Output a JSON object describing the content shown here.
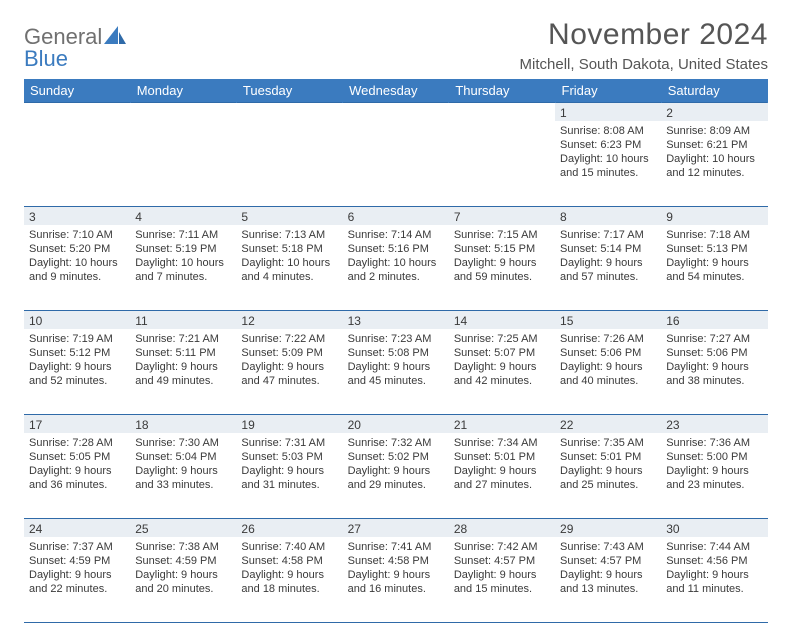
{
  "brand": {
    "word1": "General",
    "word2": "Blue"
  },
  "title": "November 2024",
  "location": "Mitchell, South Dakota, United States",
  "colors": {
    "header_bg": "#3b7bbf",
    "header_text": "#ffffff",
    "rule": "#2f6aa8",
    "daynum_bg": "#e9eef3",
    "body_text": "#3a3a3a",
    "title_text": "#555555",
    "logo_gray": "#707070",
    "logo_blue": "#3b7bbf",
    "page_bg": "#ffffff"
  },
  "typography": {
    "title_fontsize": 30,
    "location_fontsize": 15,
    "dayhead_fontsize": 13,
    "daynum_fontsize": 12,
    "cell_fontsize": 11
  },
  "day_headers": [
    "Sunday",
    "Monday",
    "Tuesday",
    "Wednesday",
    "Thursday",
    "Friday",
    "Saturday"
  ],
  "weeks": [
    [
      null,
      null,
      null,
      null,
      null,
      {
        "n": "1",
        "sr": "Sunrise: 8:08 AM",
        "ss": "Sunset: 6:23 PM",
        "dl1": "Daylight: 10 hours",
        "dl2": "and 15 minutes."
      },
      {
        "n": "2",
        "sr": "Sunrise: 8:09 AM",
        "ss": "Sunset: 6:21 PM",
        "dl1": "Daylight: 10 hours",
        "dl2": "and 12 minutes."
      }
    ],
    [
      {
        "n": "3",
        "sr": "Sunrise: 7:10 AM",
        "ss": "Sunset: 5:20 PM",
        "dl1": "Daylight: 10 hours",
        "dl2": "and 9 minutes."
      },
      {
        "n": "4",
        "sr": "Sunrise: 7:11 AM",
        "ss": "Sunset: 5:19 PM",
        "dl1": "Daylight: 10 hours",
        "dl2": "and 7 minutes."
      },
      {
        "n": "5",
        "sr": "Sunrise: 7:13 AM",
        "ss": "Sunset: 5:18 PM",
        "dl1": "Daylight: 10 hours",
        "dl2": "and 4 minutes."
      },
      {
        "n": "6",
        "sr": "Sunrise: 7:14 AM",
        "ss": "Sunset: 5:16 PM",
        "dl1": "Daylight: 10 hours",
        "dl2": "and 2 minutes."
      },
      {
        "n": "7",
        "sr": "Sunrise: 7:15 AM",
        "ss": "Sunset: 5:15 PM",
        "dl1": "Daylight: 9 hours",
        "dl2": "and 59 minutes."
      },
      {
        "n": "8",
        "sr": "Sunrise: 7:17 AM",
        "ss": "Sunset: 5:14 PM",
        "dl1": "Daylight: 9 hours",
        "dl2": "and 57 minutes."
      },
      {
        "n": "9",
        "sr": "Sunrise: 7:18 AM",
        "ss": "Sunset: 5:13 PM",
        "dl1": "Daylight: 9 hours",
        "dl2": "and 54 minutes."
      }
    ],
    [
      {
        "n": "10",
        "sr": "Sunrise: 7:19 AM",
        "ss": "Sunset: 5:12 PM",
        "dl1": "Daylight: 9 hours",
        "dl2": "and 52 minutes."
      },
      {
        "n": "11",
        "sr": "Sunrise: 7:21 AM",
        "ss": "Sunset: 5:11 PM",
        "dl1": "Daylight: 9 hours",
        "dl2": "and 49 minutes."
      },
      {
        "n": "12",
        "sr": "Sunrise: 7:22 AM",
        "ss": "Sunset: 5:09 PM",
        "dl1": "Daylight: 9 hours",
        "dl2": "and 47 minutes."
      },
      {
        "n": "13",
        "sr": "Sunrise: 7:23 AM",
        "ss": "Sunset: 5:08 PM",
        "dl1": "Daylight: 9 hours",
        "dl2": "and 45 minutes."
      },
      {
        "n": "14",
        "sr": "Sunrise: 7:25 AM",
        "ss": "Sunset: 5:07 PM",
        "dl1": "Daylight: 9 hours",
        "dl2": "and 42 minutes."
      },
      {
        "n": "15",
        "sr": "Sunrise: 7:26 AM",
        "ss": "Sunset: 5:06 PM",
        "dl1": "Daylight: 9 hours",
        "dl2": "and 40 minutes."
      },
      {
        "n": "16",
        "sr": "Sunrise: 7:27 AM",
        "ss": "Sunset: 5:06 PM",
        "dl1": "Daylight: 9 hours",
        "dl2": "and 38 minutes."
      }
    ],
    [
      {
        "n": "17",
        "sr": "Sunrise: 7:28 AM",
        "ss": "Sunset: 5:05 PM",
        "dl1": "Daylight: 9 hours",
        "dl2": "and 36 minutes."
      },
      {
        "n": "18",
        "sr": "Sunrise: 7:30 AM",
        "ss": "Sunset: 5:04 PM",
        "dl1": "Daylight: 9 hours",
        "dl2": "and 33 minutes."
      },
      {
        "n": "19",
        "sr": "Sunrise: 7:31 AM",
        "ss": "Sunset: 5:03 PM",
        "dl1": "Daylight: 9 hours",
        "dl2": "and 31 minutes."
      },
      {
        "n": "20",
        "sr": "Sunrise: 7:32 AM",
        "ss": "Sunset: 5:02 PM",
        "dl1": "Daylight: 9 hours",
        "dl2": "and 29 minutes."
      },
      {
        "n": "21",
        "sr": "Sunrise: 7:34 AM",
        "ss": "Sunset: 5:01 PM",
        "dl1": "Daylight: 9 hours",
        "dl2": "and 27 minutes."
      },
      {
        "n": "22",
        "sr": "Sunrise: 7:35 AM",
        "ss": "Sunset: 5:01 PM",
        "dl1": "Daylight: 9 hours",
        "dl2": "and 25 minutes."
      },
      {
        "n": "23",
        "sr": "Sunrise: 7:36 AM",
        "ss": "Sunset: 5:00 PM",
        "dl1": "Daylight: 9 hours",
        "dl2": "and 23 minutes."
      }
    ],
    [
      {
        "n": "24",
        "sr": "Sunrise: 7:37 AM",
        "ss": "Sunset: 4:59 PM",
        "dl1": "Daylight: 9 hours",
        "dl2": "and 22 minutes."
      },
      {
        "n": "25",
        "sr": "Sunrise: 7:38 AM",
        "ss": "Sunset: 4:59 PM",
        "dl1": "Daylight: 9 hours",
        "dl2": "and 20 minutes."
      },
      {
        "n": "26",
        "sr": "Sunrise: 7:40 AM",
        "ss": "Sunset: 4:58 PM",
        "dl1": "Daylight: 9 hours",
        "dl2": "and 18 minutes."
      },
      {
        "n": "27",
        "sr": "Sunrise: 7:41 AM",
        "ss": "Sunset: 4:58 PM",
        "dl1": "Daylight: 9 hours",
        "dl2": "and 16 minutes."
      },
      {
        "n": "28",
        "sr": "Sunrise: 7:42 AM",
        "ss": "Sunset: 4:57 PM",
        "dl1": "Daylight: 9 hours",
        "dl2": "and 15 minutes."
      },
      {
        "n": "29",
        "sr": "Sunrise: 7:43 AM",
        "ss": "Sunset: 4:57 PM",
        "dl1": "Daylight: 9 hours",
        "dl2": "and 13 minutes."
      },
      {
        "n": "30",
        "sr": "Sunrise: 7:44 AM",
        "ss": "Sunset: 4:56 PM",
        "dl1": "Daylight: 9 hours",
        "dl2": "and 11 minutes."
      }
    ]
  ]
}
